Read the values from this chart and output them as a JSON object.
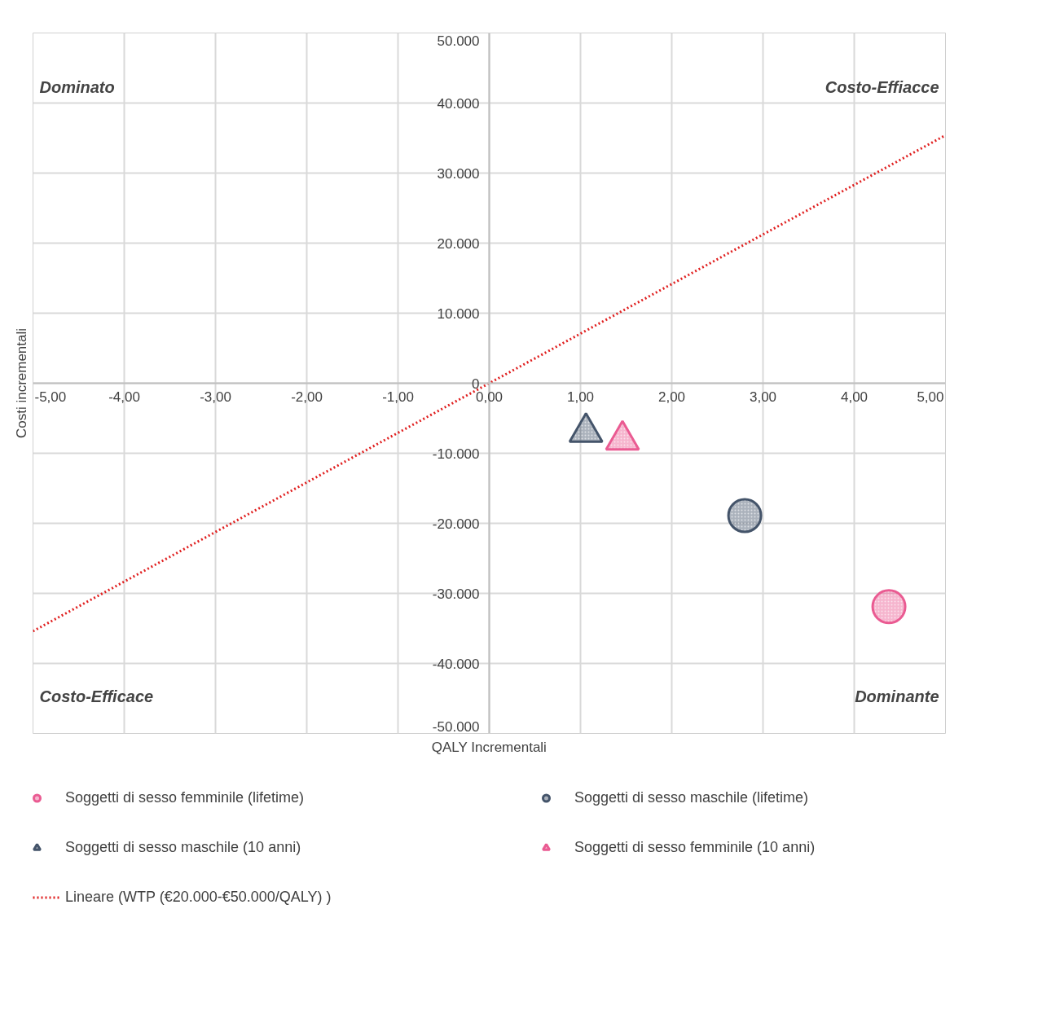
{
  "chart_data": {
    "type": "scatter",
    "xlabel": "QALY Incrementali",
    "ylabel": "Costi incrementali",
    "xlim": [
      -5,
      5
    ],
    "ylim": [
      -50000,
      50000
    ],
    "xticks": [
      {
        "value": -5,
        "label": "-5,00"
      },
      {
        "value": -4,
        "label": "-4,00"
      },
      {
        "value": -3,
        "label": "-3,00"
      },
      {
        "value": -2,
        "label": "-2,00"
      },
      {
        "value": -1,
        "label": "-1,00"
      },
      {
        "value": 0,
        "label": "0,00"
      },
      {
        "value": 1,
        "label": "1,00"
      },
      {
        "value": 2,
        "label": "2,00"
      },
      {
        "value": 3,
        "label": "3,00"
      },
      {
        "value": 4,
        "label": "4,00"
      },
      {
        "value": 5,
        "label": "5,00"
      }
    ],
    "yticks": [
      {
        "value": -50000,
        "label": "-50.000"
      },
      {
        "value": -40000,
        "label": "-40.000"
      },
      {
        "value": -30000,
        "label": "-30.000"
      },
      {
        "value": -20000,
        "label": "-20.000"
      },
      {
        "value": -10000,
        "label": "-10.000"
      },
      0,
      {
        "value": 10000,
        "label": "10.000"
      },
      {
        "value": 20000,
        "label": "20.000"
      },
      {
        "value": 30000,
        "label": "30.000"
      },
      {
        "value": 40000,
        "label": "40.000"
      },
      {
        "value": 50000,
        "label": "50.000"
      }
    ],
    "grid": true,
    "legend": "bottom",
    "annotations": [
      "Dominato",
      "Costo-Effiacce",
      "Costo-Efficace",
      "Dominante"
    ],
    "series": [
      {
        "name": "Soggetti di sesso femminile (lifetime)",
        "color": "#ea5b92",
        "marker": "circle",
        "x": [
          4.38
        ],
        "values": [
          -31900
        ]
      },
      {
        "name": "Soggetti di sesso maschile (lifetime)",
        "color": "#44546a",
        "marker": "circle",
        "x": [
          2.8
        ],
        "values": [
          -18900
        ]
      },
      {
        "name": "Soggetti di sesso maschile (10 anni)",
        "color": "#44546a",
        "marker": "triangle",
        "x": [
          1.06
        ],
        "values": [
          -7000
        ]
      },
      {
        "name": "Soggetti di sesso femminile (10 anni)",
        "color": "#ea5b92",
        "marker": "triangle",
        "x": [
          1.46
        ],
        "values": [
          -8100
        ]
      },
      {
        "name": "Lineare (WTP (€20.000-€50.000/QALY) )",
        "type": "line",
        "color": "#e02020",
        "line_style": "dotted",
        "x": [
          -5,
          5
        ],
        "values": [
          -35400,
          35400
        ]
      }
    ]
  }
}
